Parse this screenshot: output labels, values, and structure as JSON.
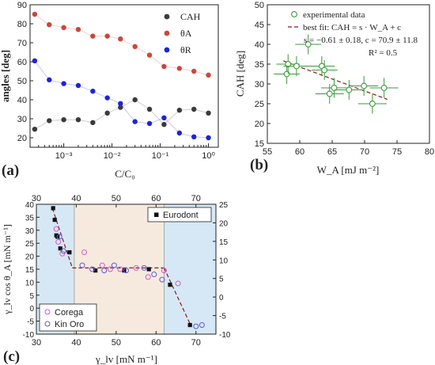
{
  "panels": {
    "a": {
      "label": "(a)"
    },
    "b": {
      "label": "(b)"
    },
    "c": {
      "label": "(c)"
    }
  },
  "chart_data": [
    {
      "id": "a",
      "type": "scatter",
      "xscale": "log",
      "xlim": [
        0.0002,
        1.6
      ],
      "ylim": [
        15,
        90
      ],
      "yticks": [
        20,
        30,
        40,
        50,
        60,
        70,
        80,
        90
      ],
      "xticks": [
        {
          "value": 0.001,
          "label": "10⁻³"
        },
        {
          "value": 0.01,
          "label": "10⁻²"
        },
        {
          "value": 0.1,
          "label": "10⁻¹"
        },
        {
          "value": 1,
          "label": "10⁰"
        }
      ],
      "xlabel": "C/C₀",
      "ylabel": "angles [deg]",
      "legend_position": "top-right",
      "series": [
        {
          "name": "CAH",
          "color": "#3a3a3a",
          "marker": "circle",
          "x": [
            0.00025,
            0.0005,
            0.001,
            0.002,
            0.004,
            0.008,
            0.015,
            0.03,
            0.06,
            0.12,
            0.25,
            0.5,
            1
          ],
          "y": [
            24.5,
            29,
            29.5,
            29.5,
            28,
            33,
            36,
            40,
            35,
            27,
            34.5,
            35,
            33
          ]
        },
        {
          "name": "θA",
          "color": "#c9473a",
          "marker": "circle",
          "x": [
            0.00025,
            0.0005,
            0.001,
            0.002,
            0.004,
            0.008,
            0.015,
            0.03,
            0.06,
            0.12,
            0.25,
            0.5,
            1
          ],
          "y": [
            85,
            79.5,
            78,
            77,
            73.5,
            73.5,
            72,
            68,
            63.5,
            57.5,
            56.5,
            55,
            53
          ]
        },
        {
          "name": "θR",
          "color": "#1d24d6",
          "marker": "circle",
          "x": [
            0.00025,
            0.0005,
            0.001,
            0.002,
            0.004,
            0.008,
            0.015,
            0.03,
            0.06,
            0.12,
            0.25,
            0.5,
            1
          ],
          "y": [
            60.5,
            50.5,
            48.5,
            47.5,
            44.5,
            41,
            38,
            28.5,
            27.5,
            30.5,
            22.5,
            20.5,
            20
          ]
        }
      ]
    },
    {
      "id": "b",
      "type": "scatter",
      "xlim": [
        55,
        80
      ],
      "ylim": [
        15,
        50
      ],
      "xticks": [
        55,
        60,
        65,
        70,
        75,
        80
      ],
      "yticks": [
        15,
        20,
        25,
        30,
        35,
        40,
        45,
        50
      ],
      "xlabel": "W_A [mJ m⁻²]",
      "ylabel": "CAH [deg]",
      "legend_position": "top-right",
      "annotation_lines": [
        "s = −0.61 ± 0.18, c = 70.9 ± 11.8",
        "R² = 0.5"
      ],
      "series": [
        {
          "name": "experimental data",
          "color": "#3a9a3a",
          "marker": "open-circle",
          "x": [
            58.0,
            58.2,
            59.5,
            61.3,
            63.4,
            63.8,
            64.6,
            65.3,
            67.6,
            69.9,
            71.2,
            73.0
          ],
          "y": [
            32.5,
            35.0,
            34.5,
            40.0,
            34.5,
            33.5,
            27.5,
            29.0,
            28.5,
            29.5,
            25.0,
            29.0
          ],
          "xerr": [
            2.0,
            1.8,
            2.0,
            2.0,
            2.0,
            2.0,
            2.2,
            2.0,
            2.2,
            2.2,
            2.2,
            2.2
          ],
          "yerr": [
            2.5,
            2.5,
            2.5,
            2.5,
            2.5,
            2.5,
            2.5,
            2.5,
            2.5,
            2.5,
            2.5,
            2.5
          ]
        },
        {
          "name": "best fit: CAH = s · W_A + c",
          "color": "#8b1a1a",
          "style": "dashed",
          "x": [
            57.5,
            73.5
          ],
          "y": [
            35.8,
            26.1
          ]
        }
      ]
    },
    {
      "id": "c",
      "type": "scatter",
      "xlim": [
        30,
        75
      ],
      "ylim": [
        -10,
        40
      ],
      "xticks": [
        30,
        40,
        50,
        60,
        70
      ],
      "yticks": [
        -10,
        -5,
        0,
        5,
        10,
        15,
        20,
        25,
        30,
        35,
        40
      ],
      "y2lim": [
        -10,
        25
      ],
      "y2ticks": [
        -10,
        -5,
        0,
        5,
        10,
        15,
        20,
        25
      ],
      "top_xticks": [
        30,
        40,
        50,
        60,
        70
      ],
      "xlabel": "γ_lv [mN m⁻¹]",
      "ylabel": "γ_lv cos θ_A [mN m⁻¹]",
      "regions": [
        {
          "x0": 30,
          "x1": 39.5,
          "color": "#d6e8f5"
        },
        {
          "x0": 39.5,
          "x1": 62,
          "color": "#f6eade"
        },
        {
          "x0": 62,
          "x1": 75,
          "color": "#d6e8f5"
        }
      ],
      "fit_segments": [
        [
          [
            34,
            38.5
          ],
          [
            39,
            15.5
          ]
        ],
        [
          [
            39,
            15.5
          ],
          [
            62,
            15.5
          ]
        ],
        [
          [
            62,
            15.5
          ],
          [
            68.5,
            -6
          ]
        ]
      ],
      "series": [
        {
          "name": "Eurodont",
          "color": "#111111",
          "marker": "square",
          "legend_position": "top-right",
          "x": [
            34.2,
            34.6,
            35.0,
            35.3,
            36.0,
            38.3,
            44.8,
            52.0,
            58.2,
            63.5,
            68.5
          ],
          "y": [
            38.5,
            34.0,
            28.0,
            27.5,
            23.0,
            21.5,
            14.5,
            14.5,
            15.0,
            9.0,
            -6.5
          ]
        },
        {
          "name": "Corega",
          "color": "#d058c8",
          "marker": "open-circle",
          "legend_position": "bottom-left",
          "x": [
            35.0,
            35.5,
            36.5,
            42.0,
            46.5,
            48.5,
            51.0,
            55.0,
            58.0,
            62.0,
            65.5
          ],
          "y": [
            30.5,
            25.5,
            21.0,
            21.5,
            16.5,
            15.0,
            15.0,
            15.5,
            12.0,
            14.5,
            9.5
          ]
        },
        {
          "name": "Kin Oro",
          "color": "#5a5ad6",
          "marker": "open-circle",
          "legend_position": "bottom-left",
          "x": [
            35.8,
            36.8,
            41.5,
            44.0,
            47.0,
            49.5,
            52.5,
            57.0,
            59.5,
            61.5,
            70.0,
            71.5
          ],
          "y": [
            27.5,
            22.0,
            16.5,
            15.0,
            14.5,
            16.5,
            14.5,
            15.5,
            13.0,
            11.0,
            -7.0,
            -6.5
          ]
        }
      ]
    }
  ]
}
